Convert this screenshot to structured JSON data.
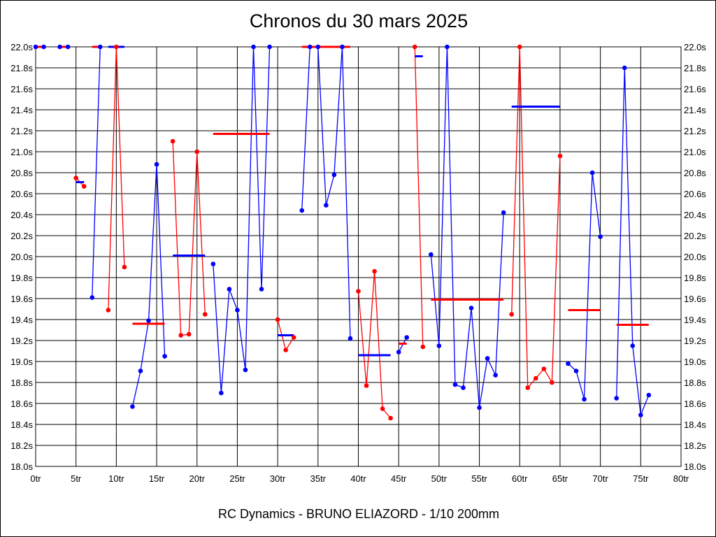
{
  "chart_data": {
    "type": "line",
    "title": "Chronos du 30 mars 2025",
    "footer": "RC Dynamics - BRUNO ELIAZORD - 1/10 200mm",
    "xlabel": "",
    "ylabel": "",
    "xlim": [
      0,
      80
    ],
    "ylim": [
      18.0,
      22.0
    ],
    "grid": true,
    "x_ticks": [
      "0tr",
      "5tr",
      "10tr",
      "15tr",
      "20tr",
      "25tr",
      "30tr",
      "35tr",
      "40tr",
      "45tr",
      "50tr",
      "55tr",
      "60tr",
      "65tr",
      "70tr",
      "75tr",
      "80tr"
    ],
    "y_ticks": [
      "18.0s",
      "18.2s",
      "18.4s",
      "18.6s",
      "18.8s",
      "19.0s",
      "19.2s",
      "19.4s",
      "19.6s",
      "19.8s",
      "20.0s",
      "20.2s",
      "20.4s",
      "20.6s",
      "20.8s",
      "21.0s",
      "21.2s",
      "21.4s",
      "21.6s",
      "21.8s",
      "22.0s"
    ],
    "colors": {
      "blue": "#0000ff",
      "red": "#ff0000"
    },
    "runs": [
      {
        "color": "blue",
        "laps": [
          0,
          1
        ],
        "values": [
          22.0,
          22.0
        ],
        "average": 22.0
      },
      {
        "color": "blue",
        "laps": [
          3,
          4
        ],
        "values": [
          22.0,
          22.0
        ],
        "average": 22.0
      },
      {
        "color": "red",
        "laps": [
          5,
          6
        ],
        "values": [
          20.75,
          20.67
        ],
        "average": 20.71
      },
      {
        "color": "blue",
        "laps": [
          7,
          8
        ],
        "values": [
          19.61,
          22.0
        ],
        "average": 22.0
      },
      {
        "color": "red",
        "laps": [
          9,
          10,
          11
        ],
        "values": [
          19.49,
          22.0,
          19.9
        ],
        "average": 22.0
      },
      {
        "color": "blue",
        "laps": [
          12,
          13,
          14,
          15,
          16
        ],
        "values": [
          18.57,
          18.91,
          19.39,
          20.88,
          19.05
        ],
        "average": 19.36
      },
      {
        "color": "red",
        "laps": [
          17,
          18,
          19,
          20,
          21
        ],
        "values": [
          21.1,
          19.25,
          19.26,
          21.0,
          19.45
        ],
        "average": 20.01
      },
      {
        "color": "blue",
        "laps": [
          22,
          23,
          24,
          25,
          26,
          27,
          28,
          29
        ],
        "values": [
          19.93,
          18.7,
          19.69,
          19.49,
          18.92,
          22.0,
          19.69,
          22.0
        ],
        "average": 21.17
      },
      {
        "color": "red",
        "laps": [
          30,
          31,
          32
        ],
        "values": [
          19.4,
          19.11,
          19.23
        ],
        "average": 19.25
      },
      {
        "color": "blue",
        "laps": [
          33,
          34,
          35,
          36,
          37,
          38,
          39
        ],
        "values": [
          20.44,
          22.0,
          22.0,
          20.49,
          20.78,
          22.0,
          19.22
        ],
        "average": 22.0
      },
      {
        "color": "red",
        "laps": [
          40,
          41,
          42,
          43,
          44
        ],
        "values": [
          19.67,
          18.77,
          19.86,
          18.55,
          18.46
        ],
        "average": 19.06
      },
      {
        "color": "blue",
        "laps": [
          45,
          46
        ],
        "values": [
          19.09,
          19.23
        ],
        "average": 19.17
      },
      {
        "color": "red",
        "laps": [
          47,
          48
        ],
        "values": [
          22.0,
          19.14
        ],
        "average": 21.91
      },
      {
        "color": "blue",
        "laps": [
          49,
          50,
          51,
          52,
          53,
          54,
          55,
          56,
          57,
          58
        ],
        "values": [
          20.02,
          19.15,
          22.0,
          18.78,
          18.75,
          19.51,
          18.56,
          19.03,
          18.87,
          20.42
        ],
        "average": 19.59
      },
      {
        "color": "red",
        "laps": [
          59,
          60,
          61,
          62,
          63,
          64,
          65
        ],
        "values": [
          19.45,
          22.0,
          18.75,
          18.84,
          18.93,
          18.8,
          20.96
        ],
        "average": 21.43
      },
      {
        "color": "blue",
        "laps": [
          66,
          67,
          68,
          69,
          70
        ],
        "values": [
          18.98,
          18.91,
          18.64,
          20.8,
          20.19
        ],
        "average": 19.49
      },
      {
        "color": "blue",
        "laps": [
          72,
          73,
          74,
          75,
          76
        ],
        "values": [
          18.65,
          21.8,
          19.15,
          18.49,
          18.68
        ],
        "average": 19.35
      }
    ]
  }
}
